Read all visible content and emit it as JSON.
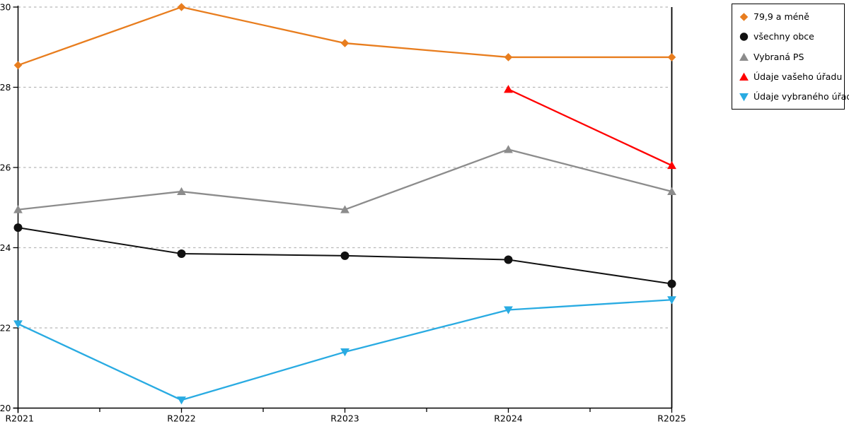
{
  "chart_data": {
    "type": "line",
    "title": "",
    "categories": [
      "R2021",
      "R2022",
      "R2023",
      "R2024",
      "R2025"
    ],
    "series": [
      {
        "name": "79,9 a méně",
        "marker": "diamond",
        "color": "#e87d1e",
        "values": [
          28.55,
          30.0,
          29.1,
          28.75,
          28.75
        ]
      },
      {
        "name": "všechny obce",
        "marker": "circle",
        "color": "#111111",
        "values": [
          24.5,
          23.85,
          23.8,
          23.7,
          23.1
        ]
      },
      {
        "name": "Vybraná PS",
        "marker": "triangle-up",
        "color": "#8c8c8c",
        "values": [
          24.95,
          25.4,
          24.95,
          26.45,
          25.4
        ]
      },
      {
        "name": "Údaje vašeho úřadu",
        "marker": "triangle-up",
        "color": "#ff0000",
        "values": [
          null,
          null,
          null,
          27.95,
          26.05
        ]
      },
      {
        "name": "Údaje vybraného úřadu",
        "marker": "triangle-down",
        "color": "#29abe2",
        "values": [
          22.1,
          20.2,
          21.4,
          22.45,
          22.7
        ]
      }
    ],
    "ylim": [
      20,
      30
    ],
    "yticks": [
      20,
      22,
      24,
      26,
      28,
      30
    ],
    "xlabel": "",
    "ylabel": "",
    "grid": "horizontal-dashed",
    "gridline_color": "#b8b8b8",
    "axis_color": "#000000",
    "legend_position": "top-right",
    "legend_border_color": "#000000"
  }
}
